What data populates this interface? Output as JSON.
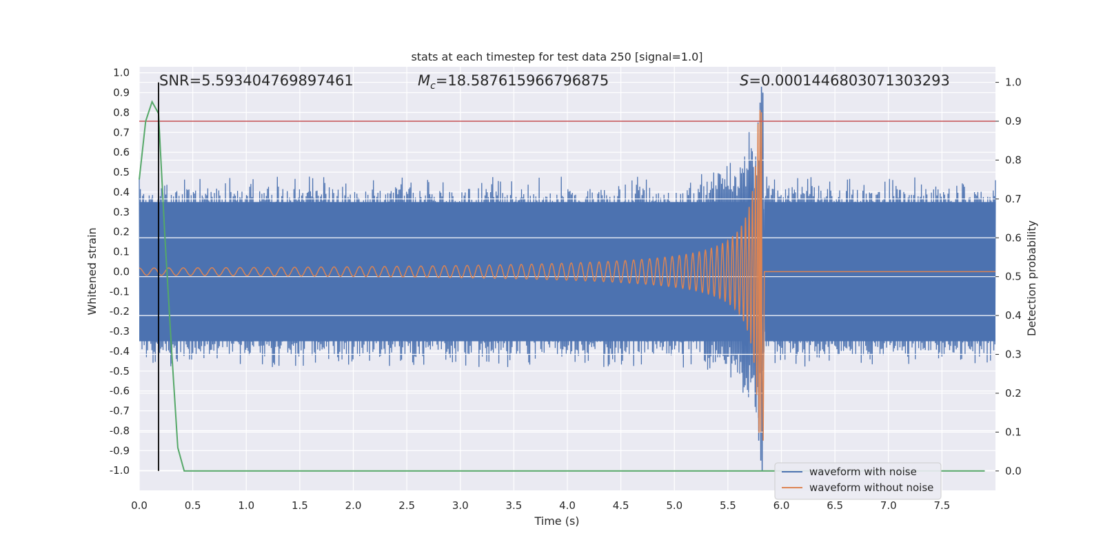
{
  "chart_data": {
    "type": "line",
    "title": "stats at each timestep for test data 250 [signal=1.0]",
    "xlabel": "Time (s)",
    "ylabel": "Whitened strain",
    "y2label": "Detection probability",
    "xlim": [
      0.0,
      8.0
    ],
    "ylim": [
      -1.1,
      1.03
    ],
    "y2lim": [
      -0.05,
      1.04
    ],
    "x_ticks": [
      "0.0",
      "0.5",
      "1.0",
      "1.5",
      "2.0",
      "2.5",
      "3.0",
      "3.5",
      "4.0",
      "4.5",
      "5.0",
      "5.5",
      "6.0",
      "6.5",
      "7.0",
      "7.5"
    ],
    "y_ticks": [
      "1.0",
      "0.9",
      "0.8",
      "0.7",
      "0.6",
      "0.5",
      "0.4",
      "0.3",
      "0.2",
      "0.1",
      "0.0",
      "-0.1",
      "-0.2",
      "-0.3",
      "-0.4",
      "-0.5",
      "-0.6",
      "-0.7",
      "-0.8",
      "-0.9",
      "-1.0"
    ],
    "y2_ticks": [
      "1.0",
      "0.9",
      "0.8",
      "0.7",
      "0.6",
      "0.5",
      "0.4",
      "0.3",
      "0.2",
      "0.1",
      "0.0"
    ],
    "annotations": {
      "snr": "SNR=5.593404769897461",
      "mc_symbol": "M",
      "mc_sub": "c",
      "mc_value": "=18.587615966796875",
      "s_symbol": "S",
      "s_value": "=0.0001446803071303293"
    },
    "legend": {
      "position": "lower-right",
      "entries": [
        "waveform with noise",
        "waveform without noise"
      ]
    },
    "threshold_y2": 0.9,
    "marker_time": 0.18,
    "merger_time": 5.82,
    "end_time": 8.0,
    "noise_band": {
      "upper": 0.45,
      "lower": -0.45
    },
    "series": [
      {
        "name": "waveform with noise",
        "color": "#4c72b0",
        "kind": "strain",
        "note": "noisy whitened strain, peaks near 0.93 and -1.0 at merger"
      },
      {
        "name": "waveform without noise",
        "color": "#dd8452",
        "kind": "strain",
        "note": "chirp signal growing to ~0.8 at merger (5.82 s)"
      },
      {
        "name": "detection probability",
        "color": "#55a868",
        "axis": "right",
        "x": [
          0.0,
          0.06,
          0.12,
          0.18,
          0.24,
          0.3,
          0.36,
          0.42,
          0.6,
          1.0,
          2.0,
          3.0,
          4.0,
          5.0,
          6.0,
          7.0,
          7.9
        ],
        "y": [
          0.75,
          0.9,
          0.95,
          0.92,
          0.6,
          0.32,
          0.06,
          0.0,
          0.0,
          0.0,
          0.0,
          0.0,
          0.0,
          0.0,
          0.0,
          0.0,
          0.0
        ]
      }
    ],
    "colors": {
      "background": "#eaeaf2",
      "grid": "#ffffff",
      "noisy": "#4c72b0",
      "clean": "#dd8452",
      "prob": "#55a868",
      "threshold": "#c44e52",
      "marker": "#000000"
    }
  }
}
